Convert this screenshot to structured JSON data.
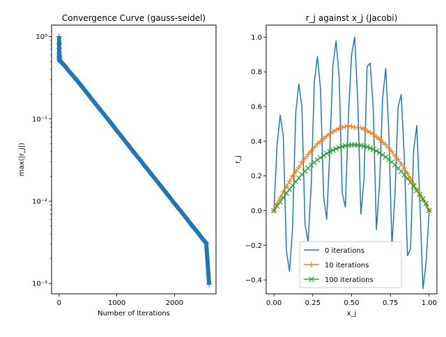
{
  "chart_data": [
    {
      "type": "line",
      "title": "Convergence Curve (gauss-seidel)",
      "xlabel": "Number of Iterations",
      "ylabel": "max(|r_j|)",
      "yscale": "log",
      "xlim": [
        -130,
        2720
      ],
      "ylim": [
        0.00075,
        1.38
      ],
      "xticks": [
        0,
        1000,
        2000
      ],
      "xtick_labels": [
        "0",
        "1000",
        "2000"
      ],
      "yticks": [
        0.001,
        0.01,
        0.1,
        1
      ],
      "ytick_labels": [
        "10⁻³",
        "10⁻²",
        "10⁻¹",
        "10⁰"
      ],
      "grid": false,
      "color": "#1f77b4",
      "marker": "+",
      "series": [
        {
          "x": [
            0,
            1,
            2,
            3,
            4,
            5,
            6,
            8,
            10,
            15,
            20,
            30,
            50,
            100,
            200,
            300,
            400,
            500,
            600,
            700,
            800,
            900,
            1000,
            1100,
            1200,
            1300,
            1400,
            1500,
            1600,
            1700,
            1800,
            1900,
            2000,
            2100,
            2200,
            2300,
            2400,
            2500,
            2550,
            2600
          ],
          "y": [
            1.0,
            0.82,
            0.72,
            0.64,
            0.6,
            0.57,
            0.55,
            0.53,
            0.52,
            0.51,
            0.5,
            0.495,
            0.48,
            0.44,
            0.36,
            0.3,
            0.245,
            0.2,
            0.163,
            0.133,
            0.109,
            0.089,
            0.072,
            0.059,
            0.048,
            0.039,
            0.032,
            0.026,
            0.0213,
            0.0174,
            0.0142,
            0.0116,
            0.0094,
            0.0077,
            0.0063,
            0.0051,
            0.0042,
            0.0034,
            0.0031,
            0.00098
          ]
        }
      ]
    },
    {
      "type": "line",
      "title": "r_j against x_j (Jacobi)",
      "xlabel": "x_j",
      "ylabel": "r_j",
      "xlim": [
        -0.05,
        1.05
      ],
      "ylim": [
        -0.48,
        1.07
      ],
      "xticks": [
        0.0,
        0.25,
        0.5,
        0.75,
        1.0
      ],
      "xtick_labels": [
        "0.00",
        "0.25",
        "0.50",
        "0.75",
        "1.00"
      ],
      "yticks": [
        -0.4,
        -0.2,
        0.0,
        0.2,
        0.4,
        0.6,
        0.8,
        1.0
      ],
      "ytick_labels": [
        "−0.4",
        "−0.2",
        "0.0",
        "0.2",
        "0.4",
        "0.6",
        "0.8",
        "1.0"
      ],
      "grid": false,
      "legend_position": "lower-center",
      "series": [
        {
          "name": "0 iterations",
          "color": "#1f77b4",
          "marker": "none",
          "x": [
            0.0,
            0.02,
            0.04,
            0.06,
            0.08,
            0.1,
            0.12,
            0.14,
            0.16,
            0.18,
            0.2,
            0.22,
            0.24,
            0.26,
            0.28,
            0.3,
            0.32,
            0.34,
            0.36,
            0.38,
            0.4,
            0.42,
            0.44,
            0.46,
            0.48,
            0.5,
            0.52,
            0.54,
            0.56,
            0.58,
            0.6,
            0.62,
            0.64,
            0.66,
            0.68,
            0.7,
            0.72,
            0.74,
            0.76,
            0.78,
            0.8,
            0.82,
            0.84,
            0.86,
            0.88,
            0.9,
            0.92,
            0.94,
            0.96,
            0.98,
            1.0
          ],
          "y": [
            0.0,
            0.38,
            0.55,
            0.43,
            -0.23,
            -0.35,
            -0.1,
            0.56,
            0.73,
            0.6,
            -0.08,
            -0.18,
            0.15,
            0.74,
            0.89,
            0.7,
            0.08,
            -0.05,
            0.35,
            0.84,
            0.98,
            0.77,
            0.1,
            0.02,
            0.55,
            0.9,
            1.0,
            0.63,
            -0.02,
            0.18,
            0.83,
            0.85,
            0.58,
            -0.11,
            0.15,
            0.65,
            0.82,
            0.45,
            -0.2,
            0.1,
            0.6,
            0.67,
            0.3,
            -0.26,
            -0.22,
            0.35,
            0.49,
            0.05,
            -0.45,
            -0.3,
            0.0
          ]
        },
        {
          "name": "10 iterations",
          "color": "#ff7f0e",
          "marker": "+",
          "x": [
            0.0,
            0.02,
            0.04,
            0.06,
            0.08,
            0.1,
            0.12,
            0.14,
            0.16,
            0.18,
            0.2,
            0.22,
            0.24,
            0.26,
            0.28,
            0.3,
            0.32,
            0.34,
            0.36,
            0.38,
            0.4,
            0.42,
            0.44,
            0.46,
            0.48,
            0.5,
            0.52,
            0.54,
            0.56,
            0.58,
            0.6,
            0.62,
            0.64,
            0.66,
            0.68,
            0.7,
            0.72,
            0.74,
            0.76,
            0.78,
            0.8,
            0.82,
            0.84,
            0.86,
            0.88,
            0.9,
            0.92,
            0.94,
            0.96,
            0.98,
            1.0
          ],
          "y": [
            0.0,
            0.04,
            0.075,
            0.11,
            0.14,
            0.17,
            0.2,
            0.225,
            0.25,
            0.28,
            0.3,
            0.325,
            0.345,
            0.365,
            0.385,
            0.4,
            0.415,
            0.43,
            0.445,
            0.455,
            0.465,
            0.475,
            0.48,
            0.485,
            0.49,
            0.485,
            0.48,
            0.48,
            0.478,
            0.47,
            0.46,
            0.45,
            0.44,
            0.425,
            0.41,
            0.395,
            0.38,
            0.36,
            0.34,
            0.315,
            0.295,
            0.27,
            0.245,
            0.215,
            0.185,
            0.155,
            0.12,
            0.09,
            0.06,
            0.03,
            0.0
          ]
        },
        {
          "name": "100 iterations",
          "color": "#2ca02c",
          "marker": "x",
          "x": [
            0.0,
            0.02,
            0.04,
            0.06,
            0.08,
            0.1,
            0.12,
            0.14,
            0.16,
            0.18,
            0.2,
            0.22,
            0.24,
            0.26,
            0.28,
            0.3,
            0.32,
            0.34,
            0.36,
            0.38,
            0.4,
            0.42,
            0.44,
            0.46,
            0.48,
            0.5,
            0.52,
            0.54,
            0.56,
            0.58,
            0.6,
            0.62,
            0.64,
            0.66,
            0.68,
            0.7,
            0.72,
            0.74,
            0.76,
            0.78,
            0.8,
            0.82,
            0.84,
            0.86,
            0.88,
            0.9,
            0.92,
            0.94,
            0.96,
            0.98,
            1.0
          ],
          "y": [
            0.0,
            0.025,
            0.05,
            0.075,
            0.099,
            0.122,
            0.145,
            0.167,
            0.188,
            0.208,
            0.227,
            0.245,
            0.262,
            0.278,
            0.293,
            0.306,
            0.318,
            0.33,
            0.34,
            0.349,
            0.357,
            0.364,
            0.369,
            0.374,
            0.377,
            0.379,
            0.379,
            0.378,
            0.376,
            0.372,
            0.367,
            0.361,
            0.353,
            0.344,
            0.334,
            0.322,
            0.309,
            0.295,
            0.28,
            0.263,
            0.245,
            0.226,
            0.206,
            0.185,
            0.163,
            0.14,
            0.117,
            0.093,
            0.068,
            0.042,
            0.0
          ]
        }
      ]
    }
  ]
}
